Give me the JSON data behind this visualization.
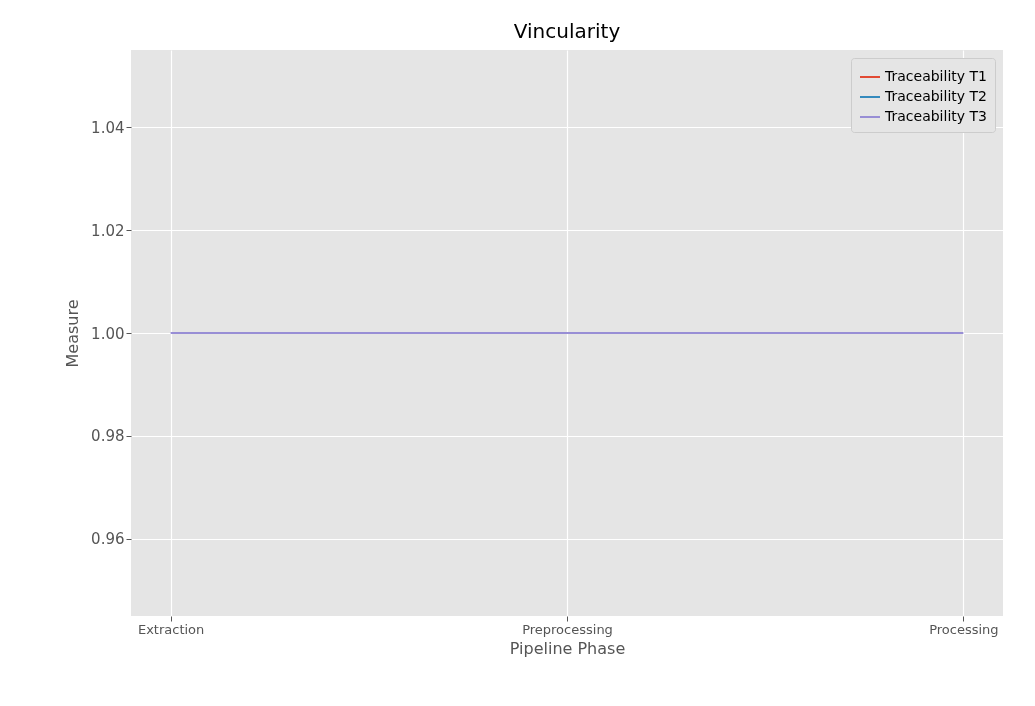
{
  "chart_data": {
    "type": "line",
    "title": "Vincularity",
    "xlabel": "Pipeline Phase",
    "ylabel": "Measure",
    "categories": [
      "Extraction",
      "Preprocessing",
      "Processing"
    ],
    "series": [
      {
        "name": "Traceability T1",
        "color": "#e24a33",
        "values": [
          null,
          null,
          null
        ]
      },
      {
        "name": "Traceability T2",
        "color": "#348abd",
        "values": [
          null,
          null,
          null
        ]
      },
      {
        "name": "Traceability T3",
        "color": "#988ed5",
        "values": [
          1,
          1,
          1
        ]
      }
    ],
    "ylim": [
      0.945,
      1.055
    ],
    "yticks": [
      0.96,
      0.98,
      {
        "value": 1,
        "label": "1.00"
      },
      1.02,
      1.04
    ],
    "grid": true,
    "legend": "top right",
    "marker": "none",
    "line_style": "solid"
  }
}
